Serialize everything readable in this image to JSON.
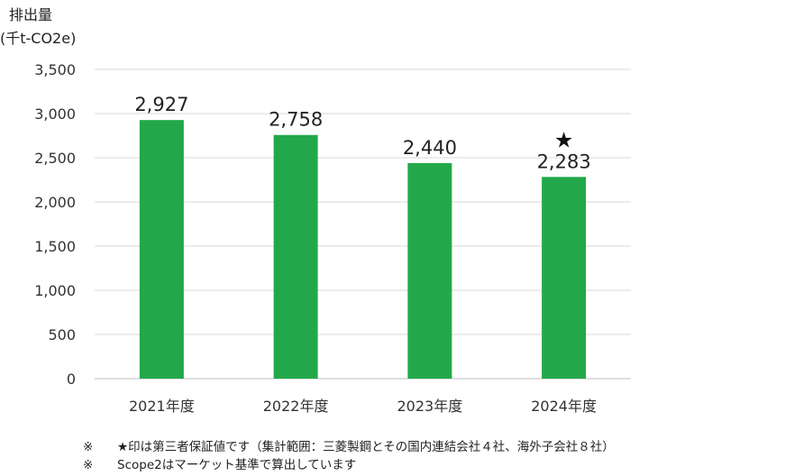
{
  "chart_data": {
    "type": "bar",
    "title": "",
    "ylabel": "排出量",
    "yunit": "(千t-CO2e)",
    "categories": [
      "2021年度",
      "2022年度",
      "2023年度",
      "2024年度"
    ],
    "values": [
      2927,
      2758,
      2440,
      2283
    ],
    "value_labels": [
      "2,927",
      "2,758",
      "2,440",
      "2,283"
    ],
    "assured_marker": [
      "",
      "",
      "",
      "★"
    ],
    "ylim": [
      0,
      3500
    ],
    "yticks": [
      0,
      500,
      1000,
      1500,
      2000,
      2500,
      3000,
      3500
    ],
    "ytick_labels": [
      "0",
      "500",
      "1,000",
      "1,500",
      "2,000",
      "2,500",
      "3,000",
      "3,500"
    ],
    "grid": true,
    "bar_color": "#22a84a",
    "grid_color": "#d9d9d9"
  },
  "notes": [
    {
      "mark": "※",
      "text": "★印は第三者保証値です（集計範囲：三菱製鋼とその国内連結会社４社、海外子会社８社）"
    },
    {
      "mark": "※",
      "text": "Scope2はマーケット基準で算出しています"
    }
  ]
}
